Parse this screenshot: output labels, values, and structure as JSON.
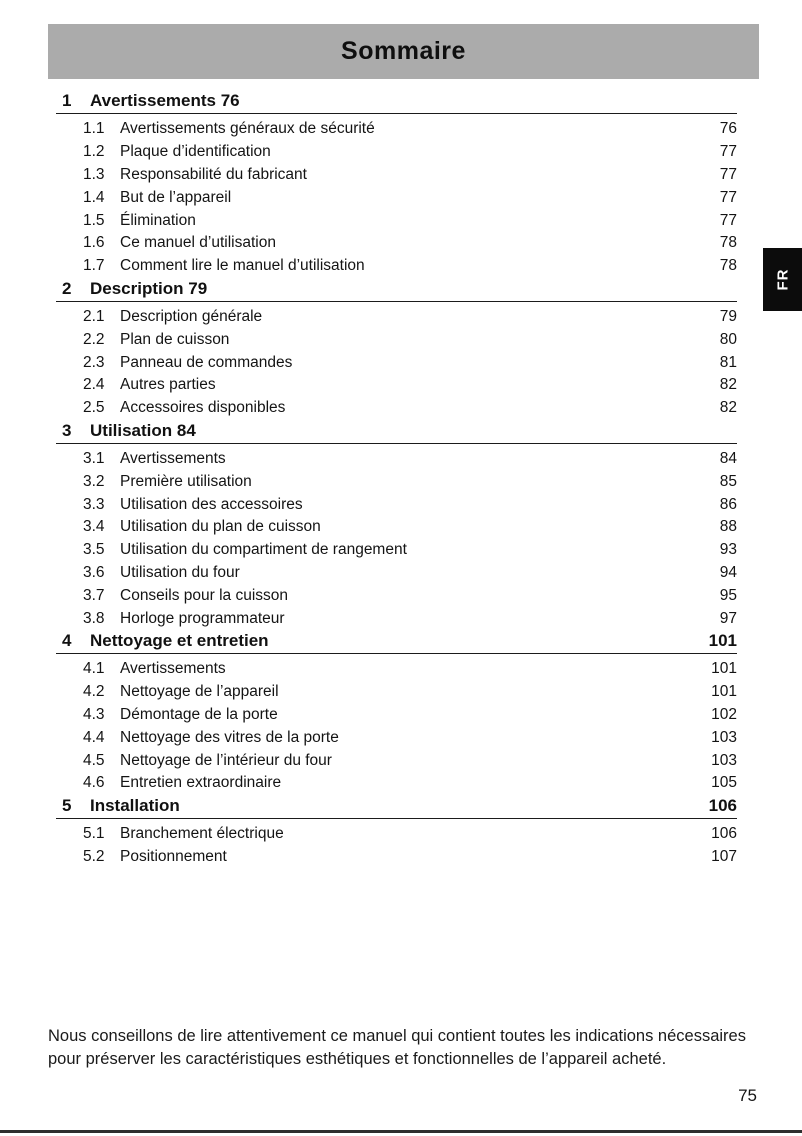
{
  "page": {
    "title": "Sommaire",
    "page_number": "75",
    "language_tab": "FR",
    "footer_note": "Nous conseillons de lire attentivement ce manuel qui contient toutes les indications nécessaires pour préserver les caractéristiques esthétiques et fonctionnelles de l’appareil acheté."
  },
  "colors": {
    "header_bg": "#ababab",
    "text": "#1a1a1a",
    "tab_bg": "#0c0c0c",
    "tab_text": "#ffffff",
    "bottom_bar": "#2e2e2e"
  },
  "toc": {
    "sections": [
      {
        "number": "1",
        "title": "Avertissements 76",
        "page": "",
        "entries": [
          {
            "number": "1.1",
            "label": "Avertissements généraux de sécurité",
            "page": "76"
          },
          {
            "number": "1.2",
            "label": "Plaque d’identification",
            "page": "77"
          },
          {
            "number": "1.3",
            "label": "Responsabilité du fabricant",
            "page": "77"
          },
          {
            "number": "1.4",
            "label": "But de l’appareil",
            "page": "77"
          },
          {
            "number": "1.5",
            "label": "Élimination",
            "page": "77"
          },
          {
            "number": "1.6",
            "label": "Ce manuel d’utilisation",
            "page": "78"
          },
          {
            "number": "1.7",
            "label": "Comment lire le manuel d’utilisation",
            "page": "78"
          }
        ]
      },
      {
        "number": "2",
        "title": "Description 79",
        "page": "",
        "entries": [
          {
            "number": "2.1",
            "label": "Description générale",
            "page": "79"
          },
          {
            "number": "2.2",
            "label": "Plan de cuisson",
            "page": "80"
          },
          {
            "number": "2.3",
            "label": "Panneau de commandes",
            "page": "81"
          },
          {
            "number": "2.4",
            "label": "Autres parties",
            "page": "82"
          },
          {
            "number": "2.5",
            "label": "Accessoires disponibles",
            "page": "82"
          }
        ]
      },
      {
        "number": "3",
        "title": "Utilisation 84",
        "page": "",
        "entries": [
          {
            "number": "3.1",
            "label": "Avertissements",
            "page": "84"
          },
          {
            "number": "3.2",
            "label": "Première utilisation",
            "page": "85"
          },
          {
            "number": "3.3",
            "label": "Utilisation des accessoires",
            "page": "86"
          },
          {
            "number": "3.4",
            "label": "Utilisation du plan de cuisson",
            "page": "88"
          },
          {
            "number": "3.5",
            "label": "Utilisation du compartiment de rangement",
            "page": "93"
          },
          {
            "number": "3.6",
            "label": "Utilisation du four",
            "page": "94"
          },
          {
            "number": "3.7",
            "label": "Conseils pour la cuisson",
            "page": "95"
          },
          {
            "number": "3.8",
            "label": "Horloge programmateur",
            "page": "97"
          }
        ]
      },
      {
        "number": "4",
        "title": "Nettoyage et entretien",
        "page": "101",
        "entries": [
          {
            "number": "4.1",
            "label": "Avertissements",
            "page": "101"
          },
          {
            "number": "4.2",
            "label": "Nettoyage de l’appareil",
            "page": "101"
          },
          {
            "number": "4.3",
            "label": "Démontage de la porte",
            "page": "102"
          },
          {
            "number": "4.4",
            "label": "Nettoyage des vitres de la porte",
            "page": "103"
          },
          {
            "number": "4.5",
            "label": "Nettoyage de l’intérieur du four",
            "page": "103"
          },
          {
            "number": "4.6",
            "label": "Entretien extraordinaire",
            "page": "105"
          }
        ]
      },
      {
        "number": "5",
        "title": "Installation",
        "page": "106",
        "entries": [
          {
            "number": "5.1",
            "label": "Branchement électrique",
            "page": "106"
          },
          {
            "number": "5.2",
            "label": "Positionnement",
            "page": "107"
          }
        ]
      }
    ]
  }
}
